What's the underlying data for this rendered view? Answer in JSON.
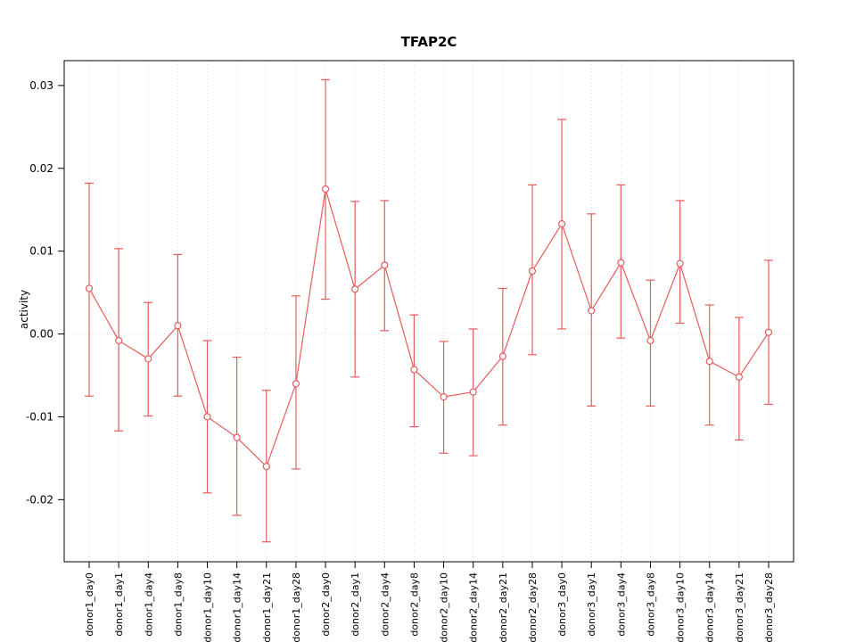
{
  "chart_data": {
    "type": "line",
    "title": "TFAP2C",
    "xlabel": "",
    "ylabel": "activity",
    "ylim": [
      -0.0275,
      0.033
    ],
    "yticks": [
      -0.02,
      -0.01,
      0.0,
      0.01,
      0.02,
      0.03
    ],
    "ytick_labels": [
      "-0.02",
      "-0.01",
      "0.00",
      "0.01",
      "0.02",
      "0.03"
    ],
    "grid": "vertical-dotted-per-category, dotted zero line",
    "legend": "none",
    "point_style": "open-circle",
    "categories": [
      "donor1_day0",
      "donor1_day1",
      "donor1_day4",
      "donor1_day8",
      "donor1_day10",
      "donor1_day14",
      "donor1_day21",
      "donor1_day28",
      "donor2_day0",
      "donor2_day1",
      "donor2_day4",
      "donor2_day8",
      "donor2_day10",
      "donor2_day14",
      "donor2_day21",
      "donor2_day28",
      "donor3_day0",
      "donor3_day1",
      "donor3_day4",
      "donor3_day8",
      "donor3_day10",
      "donor3_day14",
      "donor3_day21",
      "donor3_day28"
    ],
    "series": [
      {
        "name": "activity",
        "values": [
          0.0055,
          -0.0008,
          -0.003,
          0.001,
          -0.01,
          -0.0125,
          -0.016,
          -0.006,
          0.0175,
          0.0054,
          0.0083,
          -0.0043,
          -0.0076,
          -0.007,
          -0.0027,
          0.0076,
          0.0133,
          0.0028,
          0.0086,
          -0.0008,
          0.0085,
          -0.0033,
          -0.0052,
          0.0002
        ],
        "upper": [
          0.0182,
          0.0103,
          0.0038,
          0.0096,
          -0.0008,
          -0.0028,
          -0.0068,
          0.0046,
          0.0307,
          0.016,
          0.0161,
          0.0023,
          -0.0009,
          0.0006,
          0.0055,
          0.018,
          0.0259,
          0.0145,
          0.018,
          0.0065,
          0.0161,
          0.0035,
          0.002,
          0.0089
        ],
        "lower": [
          -0.0075,
          -0.0117,
          -0.0099,
          -0.0075,
          -0.0192,
          -0.0219,
          -0.0251,
          -0.0163,
          0.0042,
          -0.0052,
          0.0004,
          -0.0112,
          -0.0144,
          -0.0147,
          -0.011,
          -0.0025,
          0.0006,
          -0.0087,
          -0.0005,
          -0.0087,
          0.0013,
          -0.011,
          -0.0128,
          -0.0085
        ]
      }
    ],
    "colors": {
      "series": "#e65c5c",
      "grid": "#d9d9d9",
      "zero_line": "#d9d9d9",
      "box": "#000000",
      "text": "#000000",
      "background": "#ffffff"
    }
  }
}
